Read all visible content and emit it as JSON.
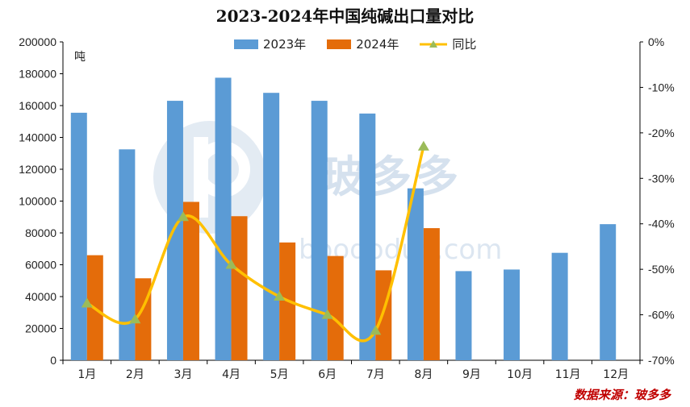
{
  "chart_data": {
    "type": "bar+line",
    "title": "2023-2024年中国纯碱出口量对比",
    "unit_label": "吨",
    "categories": [
      "1月",
      "2月",
      "3月",
      "4月",
      "5月",
      "6月",
      "7月",
      "8月",
      "9月",
      "10月",
      "11月",
      "12月"
    ],
    "series": [
      {
        "name": "2023年",
        "type": "bar",
        "axis": "left",
        "color": "#5b9bd5",
        "values": [
          155500,
          132500,
          163000,
          177500,
          168000,
          163000,
          155000,
          108000,
          56000,
          57000,
          67500,
          85500
        ]
      },
      {
        "name": "2024年",
        "type": "bar",
        "axis": "left",
        "color": "#e46c0a",
        "values": [
          66000,
          51500,
          99500,
          90500,
          74000,
          65500,
          56500,
          83000,
          null,
          null,
          null,
          null
        ]
      },
      {
        "name": "同比",
        "type": "line",
        "axis": "right",
        "color": "#ffc000",
        "marker_color": "#9bbb59",
        "values": [
          -57.5,
          -61.0,
          -38.5,
          -49.0,
          -56.0,
          -60.0,
          -63.5,
          -23.0,
          null,
          null,
          null,
          null
        ]
      }
    ],
    "ylim_left": [
      0,
      200000
    ],
    "yticks_left": [
      0,
      20000,
      40000,
      60000,
      80000,
      100000,
      120000,
      140000,
      160000,
      180000,
      200000
    ],
    "ylim_right": [
      -70,
      0
    ],
    "yticks_right": [
      "0%",
      "-10%",
      "-20%",
      "-30%",
      "-40%",
      "-50%",
      "-60%",
      "-70%"
    ],
    "legend_position": "top",
    "grid": false
  },
  "source_text": "数据来源：玻多多",
  "watermark_text": "玻多多",
  "watermark_url": "boododuo.com"
}
